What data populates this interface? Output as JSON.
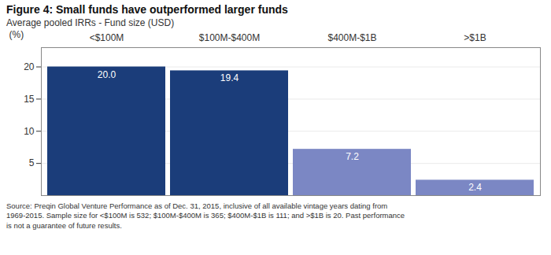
{
  "chart_data": {
    "type": "bar",
    "title": "Figure 4: Small funds have outperformed larger funds",
    "subtitle": "Average pooled IRRs - Fund size (USD)",
    "caption": "Source: Preqin Global Venture Performance as of Dec. 31, 2015, inclusive of all available vintage years dating from\n1969-2015. Sample size for <$100M is 532; $100M-$400M is 365; $400M-$1B is 111; and >$1B is 20. Past performance\nis not a guarantee of future results.",
    "categories": [
      "<$100M",
      "$100M-$400M",
      "$400M-$1B",
      ">$1B"
    ],
    "values": [
      20.0,
      19.4,
      7.2,
      2.4
    ],
    "value_labels": [
      "20.0",
      "19.4",
      "7.2",
      "2.4"
    ],
    "colors": [
      "#1b3d7a",
      "#1b3d7a",
      "#7b87c4",
      "#7b87c4"
    ],
    "ylabel": "(%)",
    "ylim": [
      0,
      23
    ],
    "yticks": [
      5,
      10,
      15,
      20
    ],
    "grid": true,
    "data_labels": true
  }
}
